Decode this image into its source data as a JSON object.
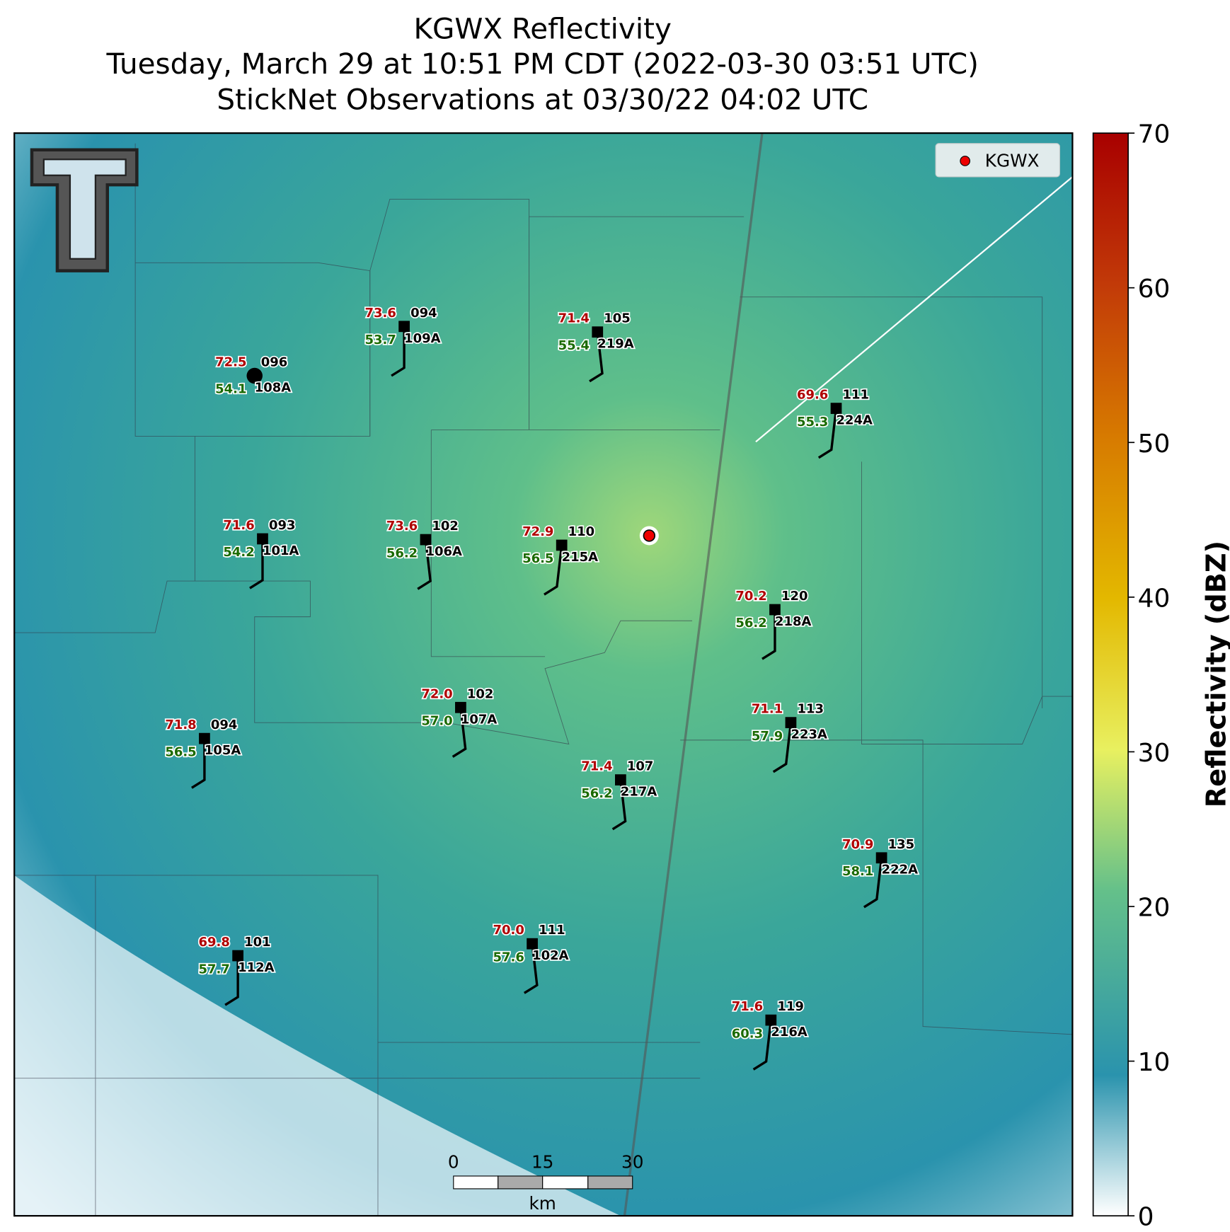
{
  "header": {
    "title": [
      "KGWX Reflectivity",
      "Tuesday, March 29 at 10:51 PM CDT (2022-03-30 03:51 UTC)",
      "StickNet Observations at 03/30/22 04:02 UTC"
    ]
  },
  "legend": {
    "label": "KGWX"
  },
  "stations": [
    {
      "temp": "72.5",
      "dewpoint": "54.1",
      "value": "096",
      "id": "108A"
    },
    {
      "temp": "73.6",
      "dewpoint": "53.7",
      "value": "094",
      "id": "109A"
    },
    {
      "temp": "71.4",
      "dewpoint": "55.4",
      "value": "105",
      "id": "219A"
    },
    {
      "temp": "69.6",
      "dewpoint": "55.3",
      "value": "111",
      "id": "224A"
    },
    {
      "temp": "71.6",
      "dewpoint": "54.2",
      "value": "093",
      "id": "101A"
    },
    {
      "temp": "73.6",
      "dewpoint": "56.2",
      "value": "102",
      "id": "106A"
    },
    {
      "temp": "72.9",
      "dewpoint": "56.5",
      "value": "110",
      "id": "215A"
    },
    {
      "temp": "70.2",
      "dewpoint": "56.2",
      "value": "120",
      "id": "218A"
    },
    {
      "temp": "72.0",
      "dewpoint": "57.0",
      "value": "102",
      "id": "107A"
    },
    {
      "temp": "71.1",
      "dewpoint": "57.9",
      "value": "113",
      "id": "223A"
    },
    {
      "temp": "71.8",
      "dewpoint": "56.5",
      "value": "094",
      "id": "105A"
    },
    {
      "temp": "71.4",
      "dewpoint": "56.2",
      "value": "107",
      "id": "217A"
    },
    {
      "temp": "70.9",
      "dewpoint": "58.1",
      "value": "135",
      "id": "222A"
    },
    {
      "temp": "69.8",
      "dewpoint": "57.7",
      "value": "101",
      "id": "112A"
    },
    {
      "temp": "70.0",
      "dewpoint": "57.6",
      "value": "111",
      "id": "102A"
    },
    {
      "temp": "71.6",
      "dewpoint": "60.3",
      "value": "119",
      "id": "216A"
    }
  ],
  "scale_bar": {
    "ticks": [
      "0",
      "15",
      "30"
    ],
    "unit": "km"
  },
  "colorbar": {
    "label": "Reflectivity (dBZ)",
    "lim": [
      0,
      70
    ],
    "ticks": [
      0,
      10,
      20,
      30,
      40,
      50,
      60,
      70
    ]
  }
}
